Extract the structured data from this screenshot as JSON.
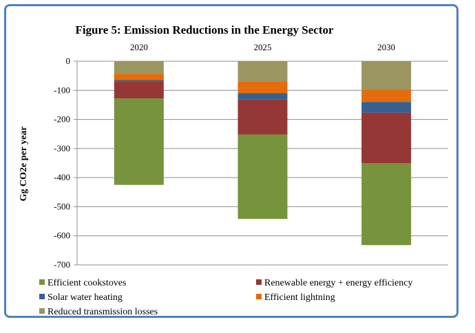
{
  "chart_data": {
    "type": "bar",
    "stacked": true,
    "title": "Figure 5: Emission Reductions in the Energy Sector",
    "xlabel": "",
    "ylabel": "Gg CO2e per year",
    "categories": [
      "2020",
      "2025",
      "2030"
    ],
    "ylim": [
      -700,
      0
    ],
    "yticks": [
      "0",
      "-100",
      "-200",
      "-300",
      "-400",
      "-500",
      "-600",
      "-700"
    ],
    "ytick_values": [
      0,
      -100,
      -200,
      -300,
      -400,
      -500,
      -600,
      -700
    ],
    "grid": true,
    "legend_position": "bottom",
    "series": [
      {
        "name": "Reduced transmission losses",
        "color": "#9b9560",
        "values": [
          -43,
          -70,
          -98
        ]
      },
      {
        "name": "Efficient lightning",
        "color": "#e46c0a",
        "values": [
          -22,
          -40,
          -42
        ]
      },
      {
        "name": "Solar water heating",
        "color": "#376092",
        "values": [
          -5,
          -22,
          -37
        ]
      },
      {
        "name": "Renewable energy + energy efficiency",
        "color": "#953735",
        "values": [
          -58,
          -120,
          -173
        ]
      },
      {
        "name": "Efficient cookstoves",
        "color": "#77933c",
        "values": [
          -297,
          -290,
          -282
        ]
      }
    ],
    "legend_items": [
      {
        "name": "Efficient cookstoves",
        "color": "#77933c"
      },
      {
        "name": "Renewable energy + energy efficiency",
        "color": "#953735"
      },
      {
        "name": "Solar water heating",
        "color": "#376092"
      },
      {
        "name": "Efficient lightning",
        "color": "#e46c0a"
      },
      {
        "name": "Reduced transmission losses",
        "color": "#9b9560"
      }
    ]
  }
}
